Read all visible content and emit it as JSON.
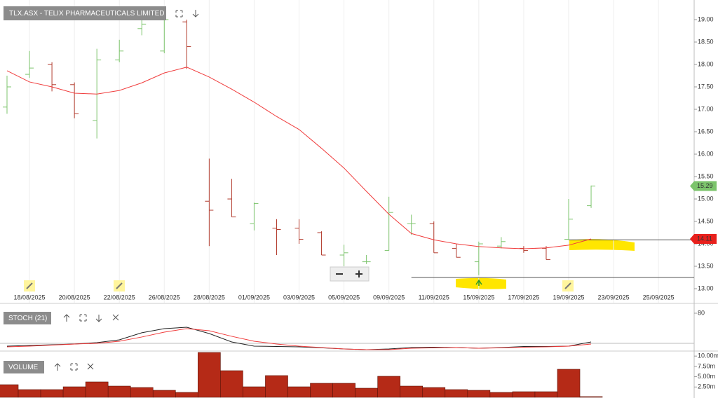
{
  "chart_data": [
    {
      "type": "ohlc",
      "title": "TLX.ASX - TELIX PHARMACEUTICALS LIMITED",
      "categories": [
        null,
        "18/08/2025",
        null,
        "20/08/2025",
        null,
        "22/08/2025",
        null,
        "26/08/2025",
        null,
        "28/08/2025",
        null,
        "01/09/2025",
        null,
        "03/09/2025",
        null,
        "05/09/2025",
        null,
        "09/09/2025",
        null,
        "11/09/2025",
        null,
        "15/09/2025",
        null,
        "17/09/2025",
        null,
        "19/09/2025",
        null,
        "23/09/2025",
        null,
        "25/09/2025"
      ],
      "open": [
        17.05,
        17.78,
        18.0,
        17.55,
        16.75,
        18.1,
        18.8,
        18.3,
        18.95,
        14.95,
        15.0,
        14.45,
        14.35,
        14.35,
        14.25,
        13.75,
        13.6,
        13.85,
        14.45,
        14.45,
        13.9,
        13.6,
        13.95,
        13.9,
        13.9,
        14.1,
        14.85,
        null,
        null,
        null
      ],
      "high": [
        17.75,
        18.3,
        18.05,
        17.6,
        18.35,
        18.55,
        19.0,
        19.1,
        19.0,
        15.9,
        15.45,
        14.92,
        14.55,
        14.55,
        14.28,
        13.98,
        13.75,
        15.05,
        14.65,
        14.5,
        14.0,
        14.05,
        14.15,
        13.95,
        13.95,
        15.0,
        15.3,
        null,
        null,
        null
      ],
      "low": [
        16.9,
        17.7,
        17.4,
        16.8,
        16.35,
        18.05,
        18.65,
        18.25,
        17.9,
        13.95,
        14.6,
        14.3,
        13.75,
        14.0,
        13.75,
        13.5,
        13.55,
        13.85,
        14.2,
        13.8,
        13.7,
        13.3,
        13.9,
        13.8,
        13.65,
        14.1,
        14.8,
        null,
        null,
        null
      ],
      "close": [
        17.5,
        17.92,
        17.55,
        16.9,
        18.1,
        18.3,
        18.9,
        19.0,
        18.4,
        14.75,
        14.6,
        14.9,
        14.32,
        14.1,
        13.75,
        13.8,
        13.6,
        14.7,
        14.45,
        13.8,
        13.7,
        14.0,
        14.05,
        13.85,
        13.65,
        14.55,
        15.29,
        null,
        null,
        null
      ],
      "up_color": "#7cc46c",
      "down_color": "#b23a2c",
      "ma": {
        "color": "#f03c3c",
        "values": [
          17.86,
          17.61,
          17.5,
          17.36,
          17.34,
          17.42,
          17.59,
          17.81,
          17.94,
          17.72,
          17.45,
          17.16,
          16.84,
          16.55,
          16.13,
          15.69,
          15.17,
          14.66,
          14.23,
          14.09,
          14.0,
          13.94,
          13.91,
          13.89,
          13.91,
          13.97,
          14.11,
          null,
          null,
          null
        ]
      },
      "ylim": [
        12.6875,
        19.4375
      ],
      "yticks": [
        {
          "value": 13,
          "label": "13.00"
        },
        {
          "value": 13.5,
          "label": "13.50"
        },
        {
          "value": 14,
          "label": "14.00"
        },
        {
          "value": 14.5,
          "label": "14.50"
        },
        {
          "value": 15,
          "label": "15.00"
        },
        {
          "value": 15.5,
          "label": "15.50"
        },
        {
          "value": 16,
          "label": "16.00"
        },
        {
          "value": 16.5,
          "label": "16.50"
        },
        {
          "value": 17,
          "label": "17.00"
        },
        {
          "value": 17.5,
          "label": "17.50"
        },
        {
          "value": 18,
          "label": "18.00"
        },
        {
          "value": 18.5,
          "label": "18.50"
        },
        {
          "value": 19,
          "label": "19.00"
        }
      ],
      "price_tags": [
        {
          "value": 15.29,
          "label": "15.29",
          "color": "#7cc46c"
        },
        {
          "value": 14.11,
          "label": "14.11",
          "color": "#e8201c"
        }
      ],
      "hlines": [
        {
          "value": 14.09,
          "start": 25
        },
        {
          "value": 13.25,
          "start": 18
        }
      ]
    },
    {
      "type": "line",
      "title": "STOCH (21)",
      "series": [
        {
          "color": "#222222",
          "values": [
            14.4,
            15.8,
            17.2,
            18.6,
            21.4,
            27,
            41,
            49.3,
            52,
            39.5,
            22.8,
            14.4,
            13.7,
            13,
            11,
            8.8,
            7.4,
            8.8,
            11.6,
            12.3,
            11.6,
            10.2,
            11.6,
            13.7,
            13.7,
            14.4,
            22.8,
            null,
            null,
            null
          ]
        },
        {
          "color": "#f03c3c",
          "values": [
            13,
            14.4,
            16.5,
            18.6,
            20,
            24.2,
            32.6,
            42.3,
            49.3,
            45.1,
            34,
            24.2,
            18.6,
            14.4,
            11.6,
            8.8,
            7.4,
            7.4,
            10.2,
            11,
            11.6,
            10.2,
            11,
            12.3,
            13,
            14.4,
            18.6,
            null,
            null,
            null
          ]
        }
      ],
      "ylim": [
        6,
        99.5
      ],
      "yticks": [
        80
      ],
      "hlines": [
        20
      ]
    },
    {
      "type": "bar",
      "title": "VOLUME",
      "color": "#b52a17",
      "values": [
        3060000,
        1870000,
        1870000,
        2550000,
        3740000,
        2720000,
        2380000,
        1700000,
        1190000,
        10880000,
        6460000,
        2550000,
        5270000,
        2550000,
        3400000,
        3400000,
        2210000,
        5100000,
        2720000,
        2380000,
        1870000,
        1700000,
        1190000,
        1360000,
        1360000,
        6800000,
        170000,
        null,
        null,
        null
      ],
      "ylim": [
        0,
        11050000
      ],
      "yticks": [
        {
          "value": 2500000,
          "label": "2.50m"
        },
        {
          "value": 5000000,
          "label": "5.00m"
        },
        {
          "value": 7500000,
          "label": "7.50m"
        },
        {
          "value": 10000000,
          "label": "10.00m"
        }
      ]
    }
  ]
}
